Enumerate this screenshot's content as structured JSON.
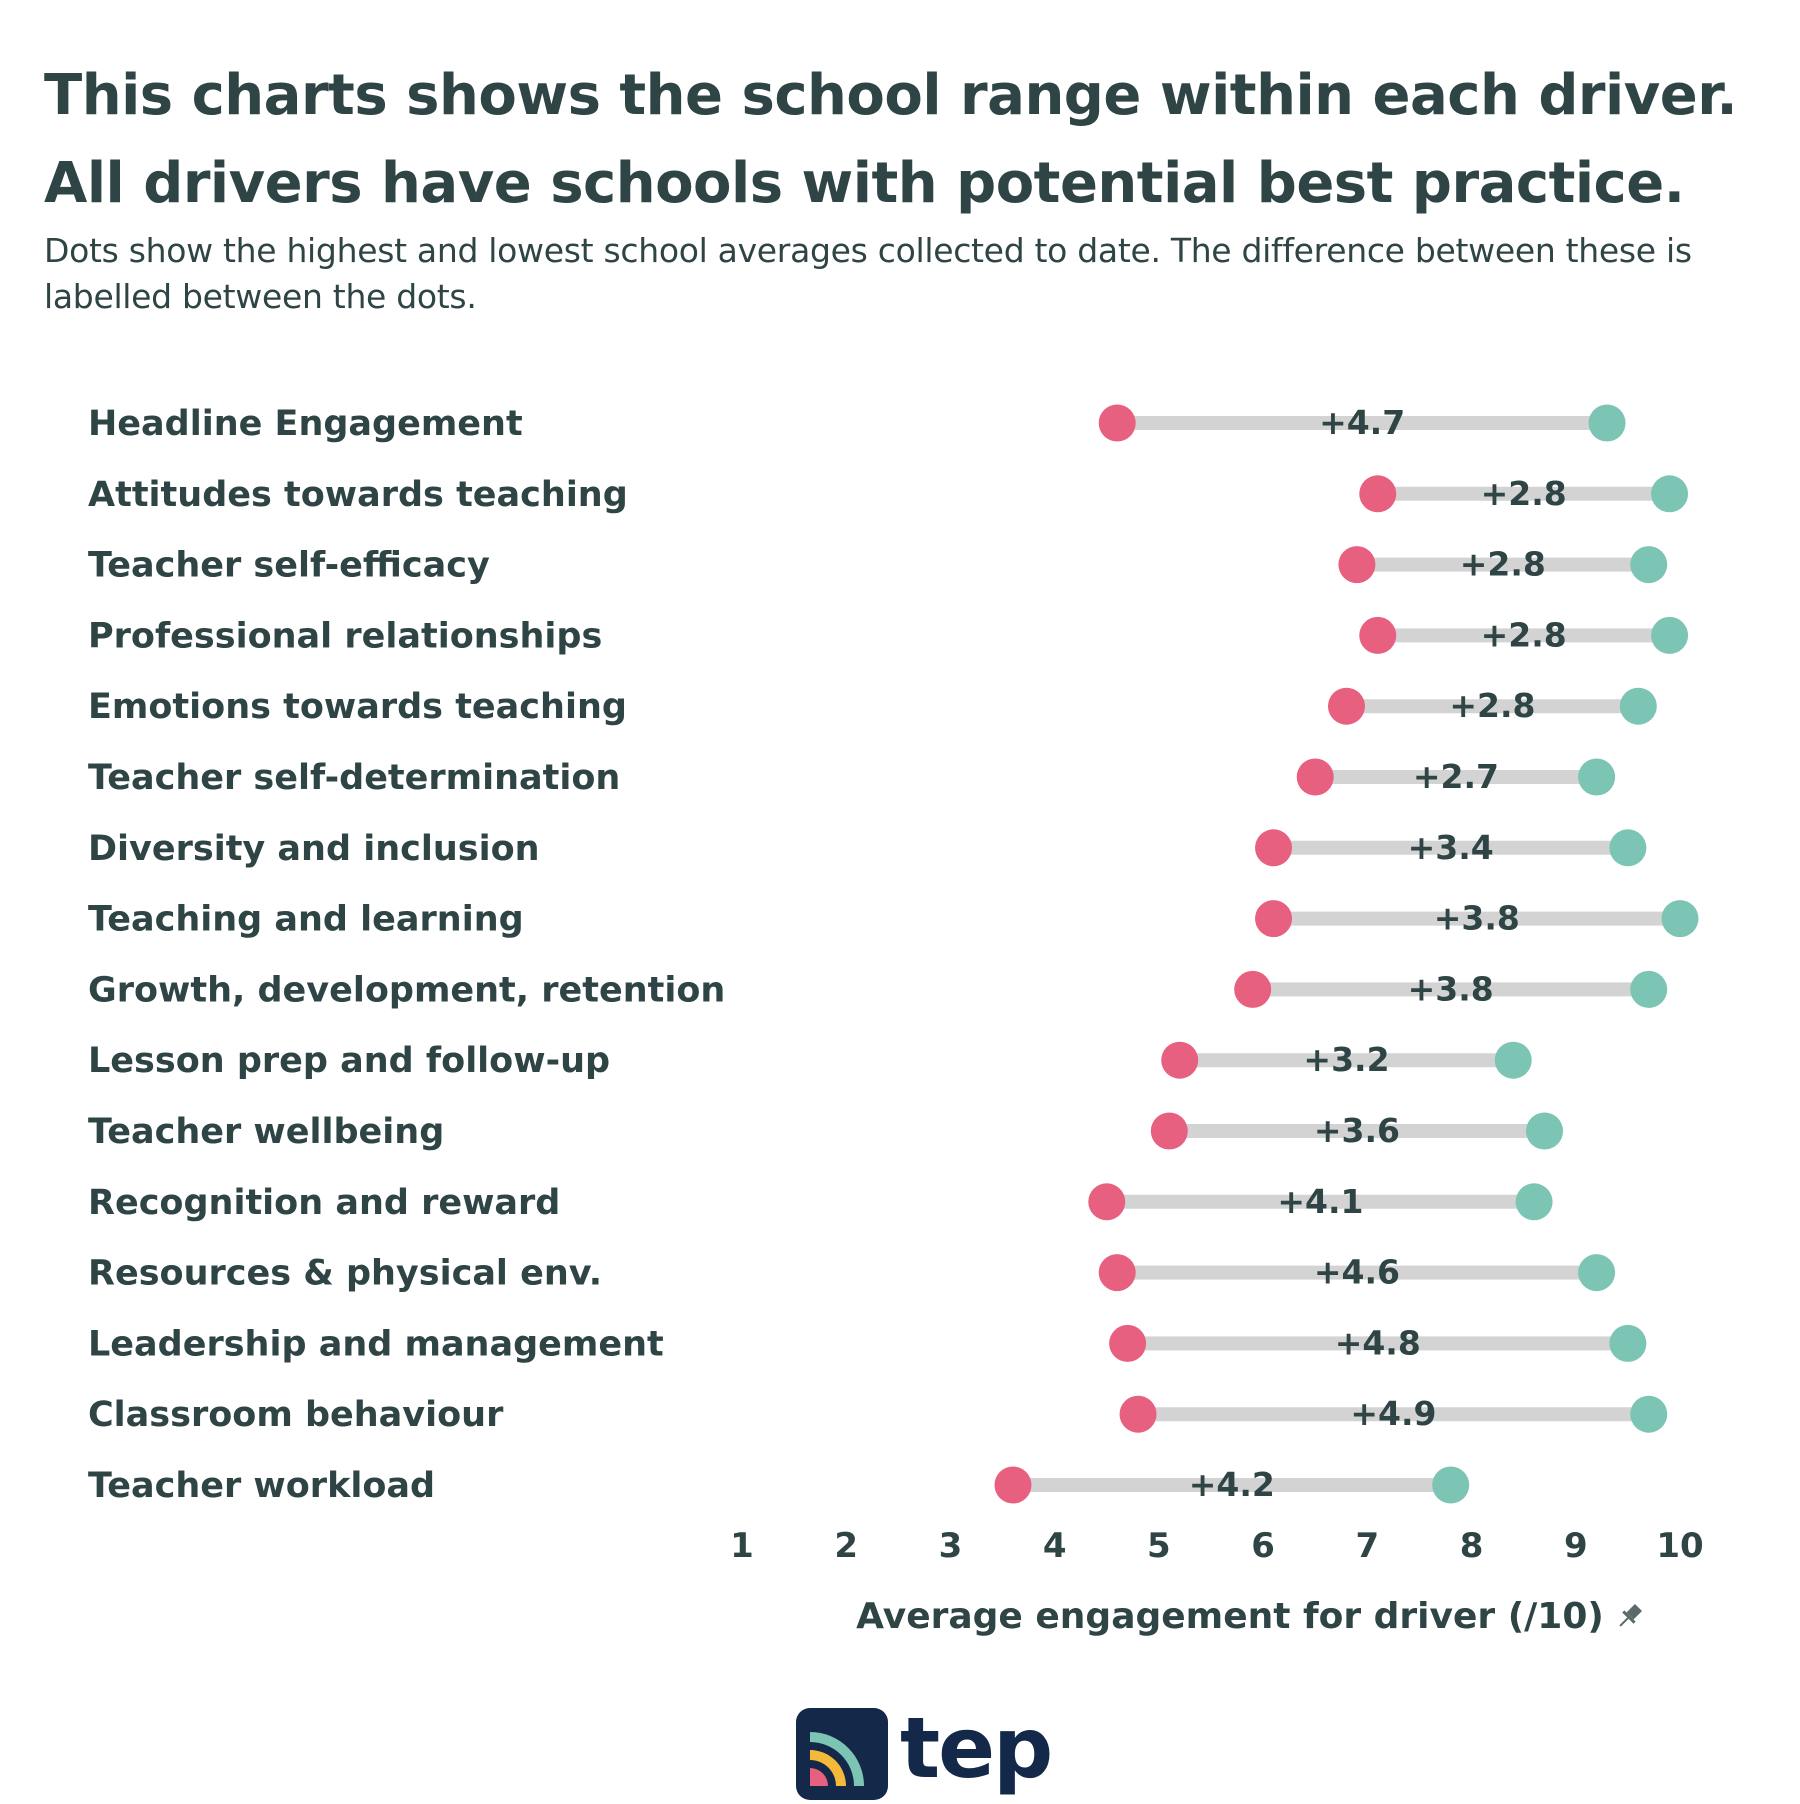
{
  "title": "This charts shows the school range within each driver. All drivers have schools with potential best practice.",
  "subtitle": "Dots show the highest and lowest school averages collected to date. The difference between these is labelled between the dots.",
  "logo_text": "tep",
  "colors": {
    "low": "#e8607f",
    "high": "#7cc4b3",
    "range": "#d3d3d3",
    "text": "#2f4445",
    "logo": "#14284a"
  },
  "chart_data": {
    "type": "dumbbell",
    "xlabel": "Average engagement for driver (/10)",
    "xlim": [
      1,
      10
    ],
    "xticks": [
      1,
      2,
      3,
      4,
      5,
      6,
      7,
      8,
      9,
      10
    ],
    "grid": false,
    "categories": [
      "Headline Engagement",
      "Attitudes towards teaching",
      "Teacher self-efficacy",
      "Professional relationships",
      "Emotions towards teaching",
      "Teacher self-determination",
      "Diversity and inclusion",
      "Teaching and learning",
      "Growth, development, retention",
      "Lesson prep and follow-up",
      "Teacher wellbeing",
      "Recognition and reward",
      "Resources & physical env.",
      "Leadership and management",
      "Classroom behaviour",
      "Teacher workload"
    ],
    "series": [
      {
        "name": "lowest",
        "values": [
          4.6,
          7.1,
          6.9,
          7.1,
          6.8,
          6.5,
          6.1,
          6.1,
          5.9,
          5.2,
          5.1,
          4.5,
          4.6,
          4.7,
          4.8,
          3.6
        ]
      },
      {
        "name": "highest",
        "values": [
          9.3,
          9.9,
          9.7,
          9.9,
          9.6,
          9.2,
          9.5,
          10.0,
          9.7,
          8.4,
          8.7,
          8.6,
          9.2,
          9.5,
          9.7,
          7.8
        ]
      }
    ],
    "difference_labels": [
      "+4.7",
      "+2.8",
      "+2.8",
      "+2.8",
      "+2.8",
      "+2.7",
      "+3.4",
      "+3.8",
      "+3.8",
      "+3.2",
      "+3.6",
      "+4.1",
      "+4.6",
      "+4.8",
      "+4.9",
      "+4.2"
    ]
  }
}
